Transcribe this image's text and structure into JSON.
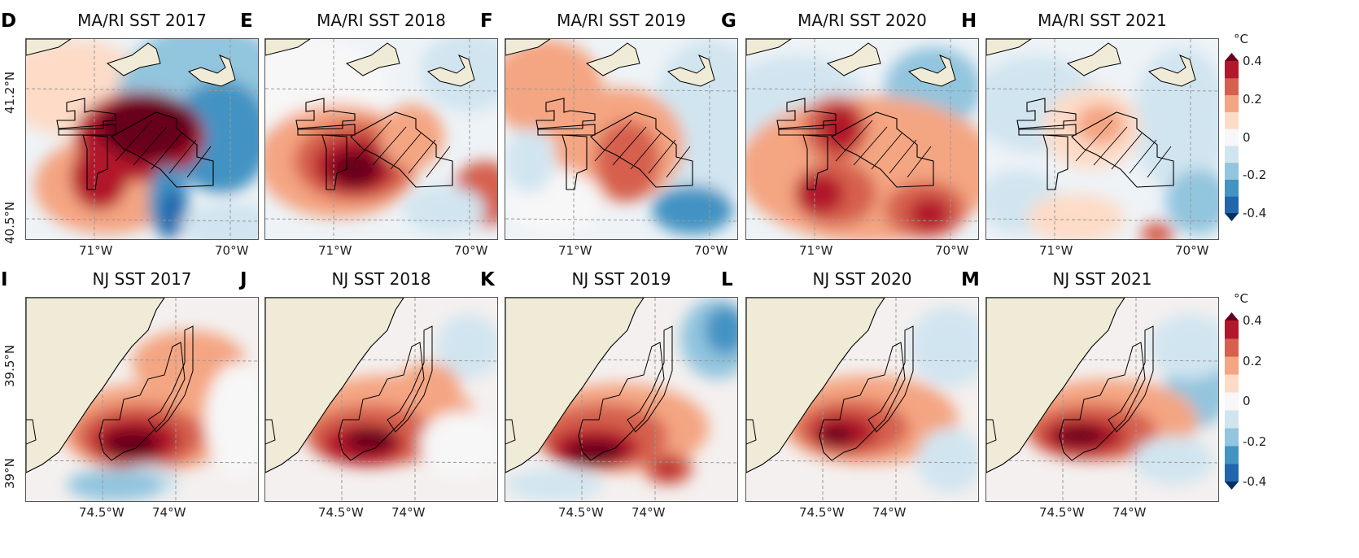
{
  "chart_data": [
    {
      "type": "heatmap",
      "region": "MA/RI",
      "panels": [
        {
          "letter": "D",
          "title": "MA/RI SST 2017"
        },
        {
          "letter": "E",
          "title": "MA/RI SST 2018"
        },
        {
          "letter": "F",
          "title": "MA/RI SST 2019"
        },
        {
          "letter": "G",
          "title": "MA/RI SST 2020"
        },
        {
          "letter": "H",
          "title": "MA/RI SST 2021"
        }
      ],
      "xticks": [
        "71°W",
        "70°W"
      ],
      "yticks": [
        "41.2°N",
        "40.5°N"
      ]
    },
    {
      "type": "heatmap",
      "region": "NJ",
      "panels": [
        {
          "letter": "I",
          "title": "NJ SST 2017"
        },
        {
          "letter": "J",
          "title": "NJ SST 2018"
        },
        {
          "letter": "K",
          "title": "NJ SST 2019"
        },
        {
          "letter": "L",
          "title": "NJ SST 2020"
        },
        {
          "letter": "M",
          "title": "NJ SST 2021"
        }
      ],
      "xticks": [
        "74.5°W",
        "74°W"
      ],
      "yticks": [
        "39.5°N",
        "39°N"
      ]
    }
  ],
  "colorbar": {
    "unit": "°C",
    "ticks": [
      "0.4",
      "0.2",
      "0",
      "-0.2",
      "-0.4"
    ],
    "range": [
      -0.4,
      0.4
    ],
    "colors": [
      "#053061",
      "#2166ac",
      "#4393c3",
      "#92c5de",
      "#d1e5f0",
      "#f7f7f7",
      "#fddbc7",
      "#f4a582",
      "#d6604d",
      "#b2182b",
      "#67001f"
    ]
  }
}
